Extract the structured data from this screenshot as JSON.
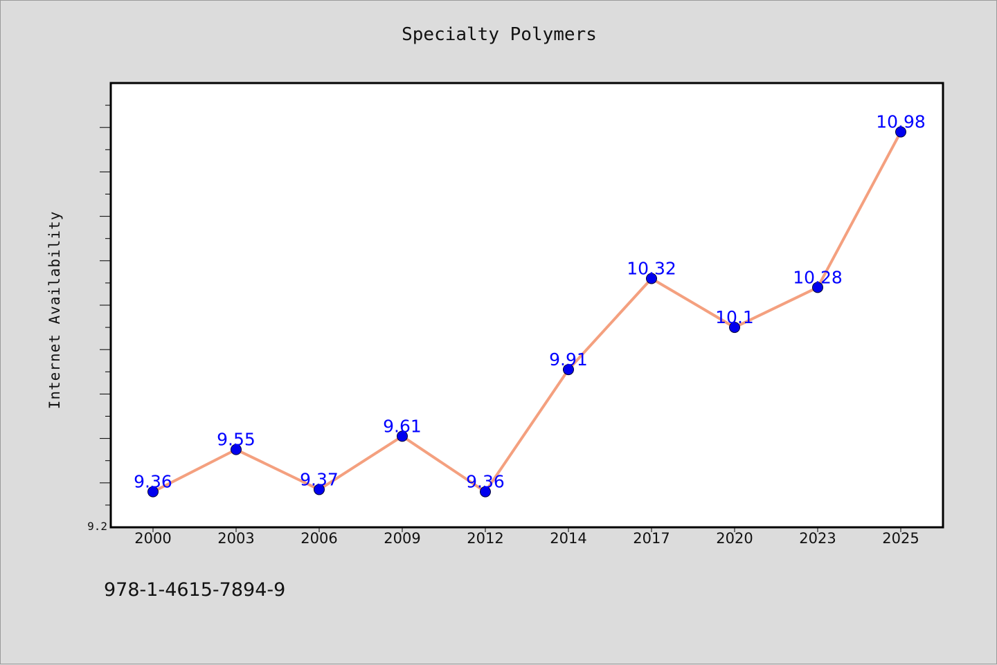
{
  "chart_data": {
    "type": "line",
    "title": "Specialty Polymers",
    "xlabel": "",
    "ylabel": "Internet Availability",
    "categories": [
      "2000",
      "2003",
      "2006",
      "2009",
      "2012",
      "2014",
      "2017",
      "2020",
      "2023",
      "2025"
    ],
    "series": [
      {
        "values": [
          9.36,
          9.55,
          9.37,
          9.61,
          9.36,
          9.91,
          10.32,
          10.1,
          10.28,
          10.98
        ],
        "data_labels": [
          "9.36",
          "9.55",
          "9.37",
          "9.61",
          "9.36",
          "9.91",
          "10.32",
          "10.1",
          "10.28",
          "10.98"
        ]
      }
    ],
    "ylim": [
      9.2,
      11.2
    ],
    "y_tick_labels": [
      "9.2"
    ],
    "grid": false,
    "legend": "none",
    "colors": {
      "line": "#f4a07f",
      "marker": "#0000ee",
      "label": "#0000ff",
      "plot_background": "#ffffff",
      "figure_background": "#dcdcdc"
    }
  },
  "annotations": {
    "isbn": "978-1-4615-7894-9"
  }
}
